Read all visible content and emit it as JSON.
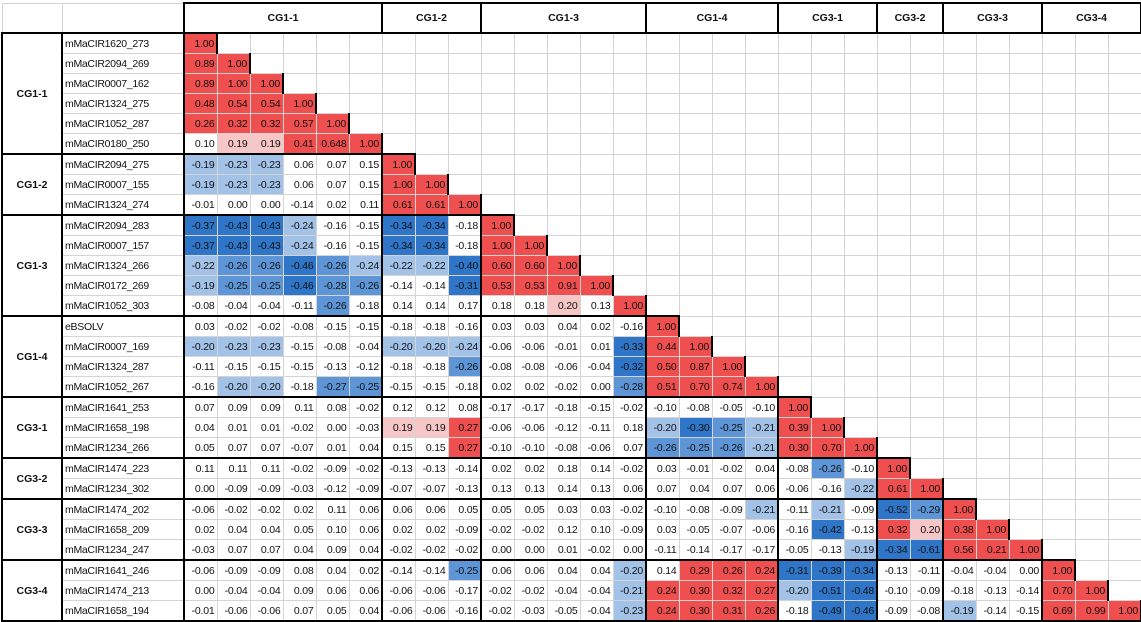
{
  "groups": [
    {
      "label": "CG1-1",
      "rows": [
        {
          "name": "mMaCIR1620_273",
          "values": [
            "1.00"
          ]
        },
        {
          "name": "mMaCIR2094_269",
          "values": [
            "0.89",
            "1.00"
          ]
        },
        {
          "name": "mMaCIR0007_162",
          "values": [
            "0.89",
            "1.00",
            "1.00"
          ]
        },
        {
          "name": "mMaCIR1324_275",
          "values": [
            "0.48",
            "0.54",
            "0.54",
            "1.00"
          ]
        },
        {
          "name": "mMaCIR1052_287",
          "values": [
            "0.26",
            "0.32",
            "0.32",
            "0.57",
            "1.00"
          ]
        },
        {
          "name": "mMaCIR0180_250",
          "values": [
            "0.10",
            "0.19",
            "0.19",
            "0.41",
            "0.648",
            "1.00"
          ]
        }
      ]
    },
    {
      "label": "CG1-2",
      "rows": [
        {
          "name": "mMaCIR2094_275",
          "values": [
            "-0.19",
            "-0.23",
            "-0.23",
            "0.06",
            "0.07",
            "0.15",
            "1.00"
          ]
        },
        {
          "name": "mMaCIR0007_155",
          "values": [
            "-0.19",
            "-0.23",
            "-0.23",
            "0.06",
            "0.07",
            "0.15",
            "1.00",
            "1.00"
          ]
        },
        {
          "name": "mMaCIR1324_274",
          "values": [
            "-0.01",
            "0.00",
            "0.00",
            "-0.14",
            "0.02",
            "0.11",
            "0.61",
            "0.61",
            "1.00"
          ]
        }
      ]
    },
    {
      "label": "CG1-3",
      "rows": [
        {
          "name": "mMaCIR2094_283",
          "values": [
            "-0.37",
            "-0.43",
            "-0.43",
            "-0.24",
            "-0.16",
            "-0.15",
            "-0.34",
            "-0.34",
            "-0.18",
            "1.00"
          ]
        },
        {
          "name": "mMaCIR0007_157",
          "values": [
            "-0.37",
            "-0.43",
            "-0.43",
            "-0.24",
            "-0.16",
            "-0.15",
            "-0.34",
            "-0.34",
            "-0.18",
            "1.00",
            "1.00"
          ]
        },
        {
          "name": "mMaCIR1324_266",
          "values": [
            "-0.22",
            "-0.26",
            "-0.26",
            "-0.46",
            "-0.26",
            "-0.24",
            "-0.22",
            "-0.22",
            "-0.40",
            "0.60",
            "0.60",
            "1.00"
          ]
        },
        {
          "name": "mMaCIR0172_269",
          "values": [
            "-0.19",
            "-0.25",
            "-0.25",
            "-0.46",
            "-0.28",
            "-0.26",
            "-0.14",
            "-0.14",
            "-0.31",
            "0.53",
            "0.53",
            "0.91",
            "1.00"
          ]
        },
        {
          "name": "mMaCIR1052_303",
          "values": [
            "-0.08",
            "-0.04",
            "-0.04",
            "-0.11",
            "-0.26",
            "-0.18",
            "0.14",
            "0.14",
            "0.17",
            "0.18",
            "0.18",
            "0.20",
            "0.13",
            "1.00"
          ]
        }
      ]
    },
    {
      "label": "CG1-4",
      "rows": [
        {
          "name": "eBSOLV",
          "values": [
            "0.03",
            "-0.02",
            "-0.02",
            "-0.08",
            "-0.15",
            "-0.15",
            "-0.18",
            "-0.18",
            "-0.16",
            "0.03",
            "0.03",
            "0.04",
            "0.02",
            "-0.16",
            "1.00"
          ]
        },
        {
          "name": "mMaCIR0007_169",
          "values": [
            "-0.20",
            "-0.23",
            "-0.23",
            "-0.15",
            "-0.08",
            "-0.04",
            "-0.20",
            "-0.20",
            "-0.24",
            "-0.06",
            "-0.06",
            "-0.01",
            "0.01",
            "-0.33",
            "0.44",
            "1.00"
          ]
        },
        {
          "name": "mMaCIR1324_287",
          "values": [
            "-0.11",
            "-0.15",
            "-0.15",
            "-0.15",
            "-0.13",
            "-0.12",
            "-0.18",
            "-0.18",
            "-0.26",
            "-0.08",
            "-0.08",
            "-0.06",
            "-0.04",
            "-0.32",
            "0.50",
            "0.87",
            "1.00"
          ]
        },
        {
          "name": "mMaCIR1052_267",
          "values": [
            "-0.16",
            "-0.20",
            "-0.20",
            "-0.18",
            "-0.27",
            "-0.25",
            "-0.15",
            "-0.15",
            "-0.18",
            "0.02",
            "0.02",
            "-0.02",
            "0.00",
            "-0.28",
            "0.51",
            "0.70",
            "0.74",
            "1.00"
          ]
        }
      ]
    },
    {
      "label": "CG3-1",
      "rows": [
        {
          "name": "mMaCIR1641_253",
          "values": [
            "0.07",
            "0.09",
            "0.09",
            "0.11",
            "0.08",
            "-0.02",
            "0.12",
            "0.12",
            "0.08",
            "-0.17",
            "-0.17",
            "-0.18",
            "-0.15",
            "-0.02",
            "-0.10",
            "-0.08",
            "-0.05",
            "-0.10",
            "1.00"
          ]
        },
        {
          "name": "mMaCIR1658_198",
          "values": [
            "0.04",
            "0.01",
            "0.01",
            "-0.02",
            "0.00",
            "-0.03",
            "0.19",
            "0.19",
            "0.27",
            "-0.06",
            "-0.06",
            "-0.12",
            "-0.11",
            "0.18",
            "-0.20",
            "-0.30",
            "-0.25",
            "-0.21",
            "0.39",
            "1.00"
          ]
        },
        {
          "name": "mMaCIR1234_266",
          "values": [
            "0.05",
            "0.07",
            "0.07",
            "-0.07",
            "0.01",
            "0.04",
            "0.15",
            "0.15",
            "0.27",
            "-0.10",
            "-0.10",
            "-0.08",
            "-0.06",
            "0.07",
            "-0.26",
            "-0.25",
            "-0.26",
            "-0.21",
            "0.30",
            "0.70",
            "1.00"
          ]
        }
      ]
    },
    {
      "label": "CG3-2",
      "rows": [
        {
          "name": "mMaCIR1474_223",
          "values": [
            "0.11",
            "0.11",
            "0.11",
            "-0.02",
            "-0.09",
            "-0.02",
            "-0.13",
            "-0.13",
            "-0.14",
            "0.02",
            "0.02",
            "0.18",
            "0.14",
            "-0.02",
            "0.03",
            "-0.01",
            "-0.02",
            "0.04",
            "-0.08",
            "-0.26",
            "-0.10",
            "1.00"
          ]
        },
        {
          "name": "mMaCIR1234_302",
          "values": [
            "0.00",
            "-0.09",
            "-0.09",
            "-0.03",
            "-0.12",
            "-0.09",
            "-0.07",
            "-0.07",
            "-0.13",
            "0.13",
            "0.13",
            "0.14",
            "0.13",
            "0.06",
            "0.07",
            "0.04",
            "0.07",
            "0.06",
            "-0.06",
            "-0.16",
            "-0.22",
            "0.61",
            "1.00"
          ]
        }
      ]
    },
    {
      "label": "CG3-3",
      "rows": [
        {
          "name": "mMaCIR1474_202",
          "values": [
            "-0.06",
            "-0.02",
            "-0.02",
            "0.02",
            "0.11",
            "0.06",
            "0.06",
            "0.06",
            "0.05",
            "0.05",
            "0.05",
            "0.03",
            "0.03",
            "-0.02",
            "-0.10",
            "-0.08",
            "-0.09",
            "-0.21",
            "-0.11",
            "-0.21",
            "-0.09",
            "-0.52",
            "-0.29",
            "1.00"
          ]
        },
        {
          "name": "mMaCIR1658_209",
          "values": [
            "0.02",
            "0.04",
            "0.04",
            "0.05",
            "0.10",
            "0.06",
            "0.02",
            "0.02",
            "-0.09",
            "-0.02",
            "-0.02",
            "0.12",
            "0.10",
            "-0.09",
            "0.03",
            "-0.05",
            "-0.07",
            "-0.06",
            "-0.16",
            "-0.42",
            "-0.13",
            "0.32",
            "0.20",
            "0.38",
            "1.00"
          ]
        },
        {
          "name": "mMaCIR1234_247",
          "values": [
            "-0.03",
            "0.07",
            "0.07",
            "0.04",
            "0.09",
            "0.04",
            "-0.02",
            "-0.02",
            "-0.02",
            "0.00",
            "0.00",
            "0.01",
            "-0.02",
            "0.00",
            "-0.11",
            "-0.14",
            "-0.17",
            "-0.17",
            "-0.05",
            "-0.13",
            "-0.19",
            "-0.34",
            "-0.61",
            "0.56",
            "0.21",
            "1.00"
          ]
        }
      ]
    },
    {
      "label": "CG3-4",
      "rows": [
        {
          "name": "mMaCIR1641_246",
          "values": [
            "-0.06",
            "-0.09",
            "-0.09",
            "0.08",
            "0.04",
            "0.02",
            "-0.14",
            "-0.14",
            "-0.25",
            "0.06",
            "0.06",
            "0.04",
            "0.04",
            "-0.20",
            "0.14",
            "0.29",
            "0.26",
            "0.24",
            "-0.31",
            "-0.39",
            "-0.34",
            "-0.13",
            "-0.11",
            "-0.04",
            "-0.04",
            "0.00",
            "1.00"
          ]
        },
        {
          "name": "mMaCIR1474_213",
          "values": [
            "0.00",
            "-0.04",
            "-0.04",
            "0.09",
            "0.06",
            "0.06",
            "-0.06",
            "-0.06",
            "-0.17",
            "-0.02",
            "-0.02",
            "-0.04",
            "-0.04",
            "-0.21",
            "0.24",
            "0.30",
            "0.32",
            "0.27",
            "-0.20",
            "-0.51",
            "-0.48",
            "-0.10",
            "-0.09",
            "-0.18",
            "-0.13",
            "-0.14",
            "0.70",
            "1.00"
          ]
        },
        {
          "name": "mMaCIR1658_194",
          "values": [
            "-0.01",
            "-0.06",
            "-0.06",
            "0.07",
            "0.05",
            "0.04",
            "-0.06",
            "-0.06",
            "-0.16",
            "-0.02",
            "-0.03",
            "-0.05",
            "-0.04",
            "-0.23",
            "0.24",
            "0.30",
            "0.31",
            "0.26",
            "-0.18",
            "-0.49",
            "-0.46",
            "-0.09",
            "-0.08",
            "-0.19",
            "-0.14",
            "-0.15",
            "0.69",
            "0.99",
            "1.00"
          ]
        }
      ]
    }
  ]
}
